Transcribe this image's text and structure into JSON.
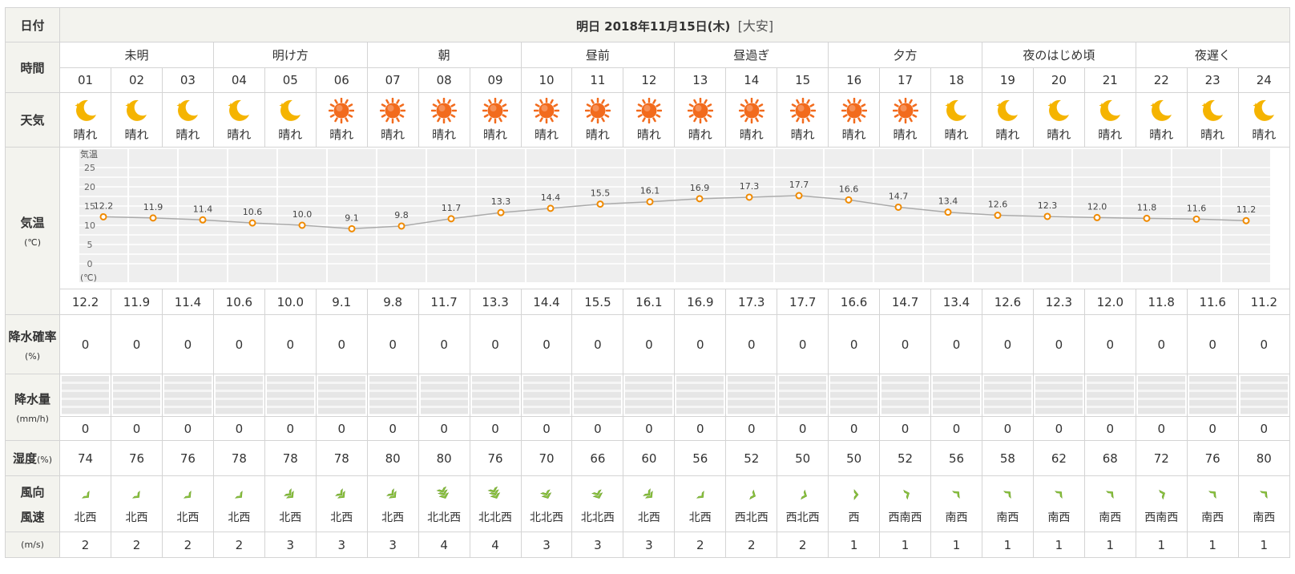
{
  "header": {
    "date_label": "日付",
    "title": "明日 2018年11月15日(木)",
    "location": "[大安]"
  },
  "row_labels": {
    "time": "時間",
    "weather": "天気",
    "temp": "気温",
    "temp_unit": "(℃)",
    "rain_prob": "降水確率",
    "rain_prob_unit": "(%)",
    "rain_amount": "降水量",
    "rain_amount_unit": "(mm/h)",
    "humidity": "湿度",
    "humidity_unit": "(%)",
    "wind_dir": "風向",
    "wind_speed": "風速",
    "wind_unit": "(m/s)"
  },
  "periods": [
    {
      "label": "未明"
    },
    {
      "label": "明け方"
    },
    {
      "label": "朝"
    },
    {
      "label": "昼前"
    },
    {
      "label": "昼過ぎ"
    },
    {
      "label": "夕方"
    },
    {
      "label": "夜のはじめ頃"
    },
    {
      "label": "夜遅く"
    }
  ],
  "hours": [
    "01",
    "02",
    "03",
    "04",
    "05",
    "06",
    "07",
    "08",
    "09",
    "10",
    "11",
    "12",
    "13",
    "14",
    "15",
    "16",
    "17",
    "18",
    "19",
    "20",
    "21",
    "22",
    "23",
    "24"
  ],
  "weather_icons": [
    "moon-icon",
    "moon-icon",
    "moon-icon",
    "moon-icon",
    "moon-icon",
    "sun-icon",
    "sun-icon",
    "sun-icon",
    "sun-icon",
    "sun-icon",
    "sun-icon",
    "sun-icon",
    "sun-icon",
    "sun-icon",
    "sun-icon",
    "sun-icon",
    "sun-icon",
    "moon-icon",
    "moon-icon",
    "moon-icon",
    "moon-icon",
    "moon-icon",
    "moon-icon",
    "moon-icon"
  ],
  "weather_text": [
    "晴れ",
    "晴れ",
    "晴れ",
    "晴れ",
    "晴れ",
    "晴れ",
    "晴れ",
    "晴れ",
    "晴れ",
    "晴れ",
    "晴れ",
    "晴れ",
    "晴れ",
    "晴れ",
    "晴れ",
    "晴れ",
    "晴れ",
    "晴れ",
    "晴れ",
    "晴れ",
    "晴れ",
    "晴れ",
    "晴れ",
    "晴れ"
  ],
  "temps_text": [
    "12.2",
    "11.9",
    "11.4",
    "10.6",
    "10.0",
    "9.1",
    "9.8",
    "11.7",
    "13.3",
    "14.4",
    "15.5",
    "16.1",
    "16.9",
    "17.3",
    "17.7",
    "16.6",
    "14.7",
    "13.4",
    "12.6",
    "12.3",
    "12.0",
    "11.8",
    "11.6",
    "11.2"
  ],
  "rain_prob": [
    "0",
    "0",
    "0",
    "0",
    "0",
    "0",
    "0",
    "0",
    "0",
    "0",
    "0",
    "0",
    "0",
    "0",
    "0",
    "0",
    "0",
    "0",
    "0",
    "0",
    "0",
    "0",
    "0",
    "0"
  ],
  "rain_amount": [
    "0",
    "0",
    "0",
    "0",
    "0",
    "0",
    "0",
    "0",
    "0",
    "0",
    "0",
    "0",
    "0",
    "0",
    "0",
    "0",
    "0",
    "0",
    "0",
    "0",
    "0",
    "0",
    "0",
    "0"
  ],
  "humidity": [
    "74",
    "76",
    "76",
    "78",
    "78",
    "78",
    "80",
    "80",
    "76",
    "70",
    "66",
    "60",
    "56",
    "52",
    "50",
    "50",
    "52",
    "56",
    "58",
    "62",
    "68",
    "72",
    "76",
    "80"
  ],
  "wind_dir": [
    "北西",
    "北西",
    "北西",
    "北西",
    "北西",
    "北西",
    "北西",
    "北北西",
    "北北西",
    "北北西",
    "北北西",
    "北西",
    "北西",
    "西北西",
    "西北西",
    "西",
    "西南西",
    "南西",
    "南西",
    "南西",
    "南西",
    "西南西",
    "南西",
    "南西"
  ],
  "wind_speed": [
    "2",
    "2",
    "2",
    "2",
    "3",
    "3",
    "3",
    "4",
    "4",
    "3",
    "3",
    "3",
    "2",
    "2",
    "2",
    "1",
    "1",
    "1",
    "1",
    "1",
    "1",
    "1",
    "1",
    "1"
  ],
  "chart_data": {
    "type": "line",
    "x": [
      "01",
      "02",
      "03",
      "04",
      "05",
      "06",
      "07",
      "08",
      "09",
      "10",
      "11",
      "12",
      "13",
      "14",
      "15",
      "16",
      "17",
      "18",
      "19",
      "20",
      "21",
      "22",
      "23",
      "24"
    ],
    "values": [
      12.2,
      11.9,
      11.4,
      10.6,
      10.0,
      9.1,
      9.8,
      11.7,
      13.3,
      14.4,
      15.5,
      16.1,
      16.9,
      17.3,
      17.7,
      16.6,
      14.7,
      13.4,
      12.6,
      12.3,
      12.0,
      11.8,
      11.6,
      11.2
    ],
    "ylabel": "気温",
    "yunit": "(℃)",
    "yticks": [
      "25",
      "20",
      "15",
      "10",
      "5",
      "0"
    ],
    "ylim": [
      0,
      25
    ],
    "grid": true,
    "line_color": "#aaaaaa",
    "marker_color": "#f08a00"
  },
  "colors": {
    "header_bg": "#f3f3ee",
    "border": "#d4d4d4",
    "sun": "#f26b1d",
    "moon": "#f5b400",
    "wind_arrow": "#8cc63f"
  }
}
